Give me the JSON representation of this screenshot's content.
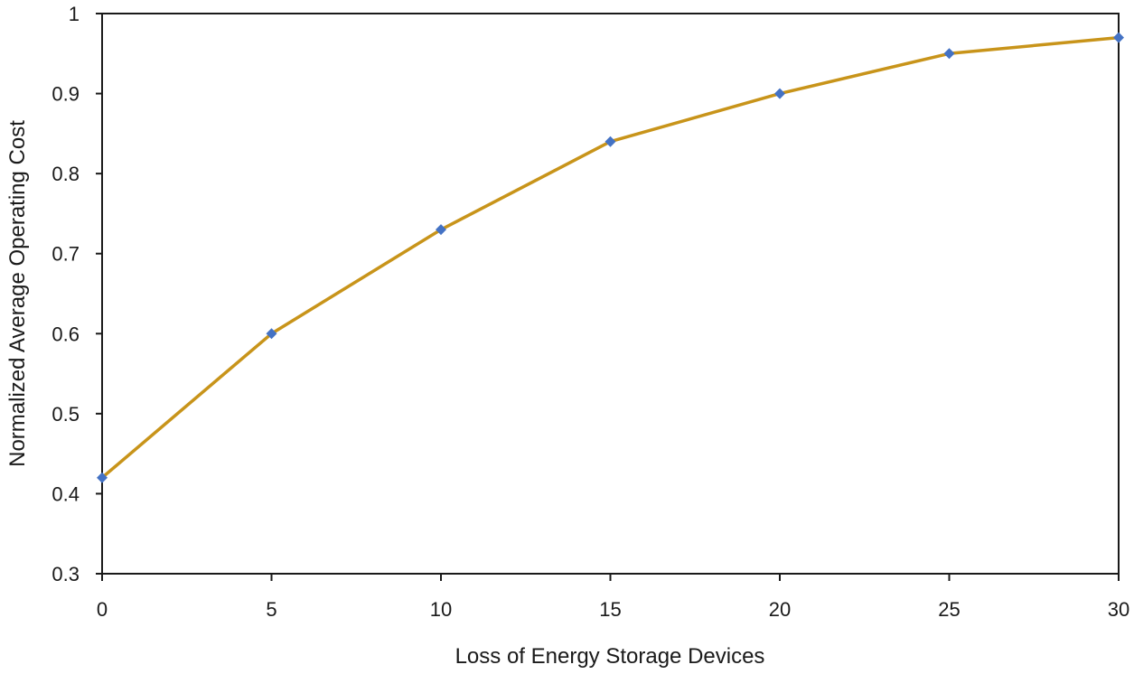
{
  "chart_data": {
    "type": "line",
    "title": "",
    "xlabel": "Loss of Energy Storage Devices",
    "ylabel": "Normalized Average Operating Cost",
    "xlim": [
      0,
      30
    ],
    "ylim": [
      0.3,
      1
    ],
    "xticks": [
      "0",
      "5",
      "10",
      "15",
      "20",
      "25",
      "30"
    ],
    "yticks": [
      "0.3",
      "0.4",
      "0.5",
      "0.6",
      "0.7",
      "0.8",
      "0.9",
      "1"
    ],
    "x": [
      0,
      5,
      10,
      15,
      20,
      25,
      30
    ],
    "series": [
      {
        "values": [
          0.42,
          0.6,
          0.73,
          0.84,
          0.9,
          0.95,
          0.97
        ]
      }
    ],
    "grid": false,
    "legend": "none",
    "line_color": "#C8941A",
    "marker_color": "#4472C4",
    "marker": "diamond"
  }
}
